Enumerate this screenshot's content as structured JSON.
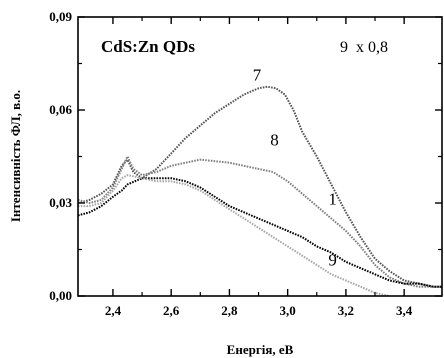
{
  "chart_data": {
    "type": "line",
    "title": "CdS:Zn QDs",
    "annotation": "9  x 0,8",
    "xlabel": "Енергія, еВ",
    "ylabel": "Інтенсивність ФЛ, в.о.",
    "xlim": [
      2.28,
      3.53
    ],
    "ylim": [
      0.0,
      0.09
    ],
    "xticks": [
      2.4,
      2.6,
      2.8,
      3.0,
      3.2,
      3.4
    ],
    "xtick_labels": [
      "2,4",
      "2,6",
      "2,8",
      "3,0",
      "3,2",
      "3,4"
    ],
    "yticks": [
      0.0,
      0.03,
      0.06,
      0.09
    ],
    "ytick_labels": [
      "0,00",
      "0,03",
      "0,06",
      "0,09"
    ],
    "grid": false,
    "legend": "none; curves labelled inline",
    "series": [
      {
        "name": "7",
        "color": "#555555",
        "x": [
          2.28,
          2.32,
          2.36,
          2.4,
          2.43,
          2.45,
          2.47,
          2.5,
          2.55,
          2.6,
          2.65,
          2.7,
          2.75,
          2.8,
          2.85,
          2.9,
          2.93,
          2.96,
          2.99,
          3.02,
          3.05,
          3.1,
          3.15,
          3.2,
          3.25,
          3.3,
          3.35,
          3.4,
          3.45,
          3.5,
          3.53
        ],
        "y": [
          0.03,
          0.031,
          0.033,
          0.036,
          0.042,
          0.044,
          0.04,
          0.038,
          0.041,
          0.046,
          0.051,
          0.055,
          0.059,
          0.062,
          0.065,
          0.067,
          0.0675,
          0.067,
          0.065,
          0.06,
          0.053,
          0.045,
          0.036,
          0.027,
          0.019,
          0.012,
          0.008,
          0.005,
          0.004,
          0.003,
          0.003
        ]
      },
      {
        "name": "8",
        "color": "#808080",
        "x": [
          2.28,
          2.32,
          2.36,
          2.4,
          2.43,
          2.45,
          2.47,
          2.5,
          2.55,
          2.6,
          2.65,
          2.7,
          2.75,
          2.8,
          2.85,
          2.9,
          2.95,
          3.0,
          3.05,
          3.1,
          3.15,
          3.2,
          3.25,
          3.3,
          3.35,
          3.4,
          3.45,
          3.5,
          3.53
        ],
        "y": [
          0.031,
          0.03,
          0.031,
          0.035,
          0.041,
          0.045,
          0.041,
          0.039,
          0.04,
          0.042,
          0.043,
          0.044,
          0.0435,
          0.043,
          0.042,
          0.041,
          0.04,
          0.037,
          0.033,
          0.029,
          0.025,
          0.021,
          0.016,
          0.01,
          0.006,
          0.004,
          0.003,
          0.003,
          0.003
        ]
      },
      {
        "name": "1",
        "color": "#000000",
        "x": [
          2.28,
          2.32,
          2.36,
          2.4,
          2.43,
          2.45,
          2.5,
          2.55,
          2.6,
          2.65,
          2.7,
          2.75,
          2.8,
          2.85,
          2.9,
          2.95,
          3.0,
          3.05,
          3.1,
          3.15,
          3.2,
          3.25,
          3.3,
          3.35,
          3.4,
          3.45,
          3.5,
          3.53
        ],
        "y": [
          0.026,
          0.027,
          0.029,
          0.032,
          0.034,
          0.036,
          0.038,
          0.038,
          0.038,
          0.037,
          0.035,
          0.032,
          0.029,
          0.027,
          0.025,
          0.023,
          0.021,
          0.019,
          0.016,
          0.014,
          0.011,
          0.009,
          0.007,
          0.005,
          0.004,
          0.004,
          0.003,
          0.003
        ]
      },
      {
        "name": "9",
        "color": "#a8a8a8",
        "x": [
          2.28,
          2.32,
          2.36,
          2.4,
          2.43,
          2.45,
          2.5,
          2.55,
          2.6,
          2.65,
          2.7,
          2.75,
          2.8,
          2.85,
          2.9,
          2.95,
          3.0,
          3.05,
          3.1,
          3.15,
          3.2,
          3.25,
          3.3,
          3.35
        ],
        "y": [
          0.029,
          0.029,
          0.03,
          0.034,
          0.038,
          0.039,
          0.038,
          0.037,
          0.037,
          0.036,
          0.034,
          0.031,
          0.028,
          0.025,
          0.022,
          0.019,
          0.016,
          0.013,
          0.01,
          0.007,
          0.005,
          0.003,
          0.001,
          0.0
        ]
      }
    ]
  }
}
